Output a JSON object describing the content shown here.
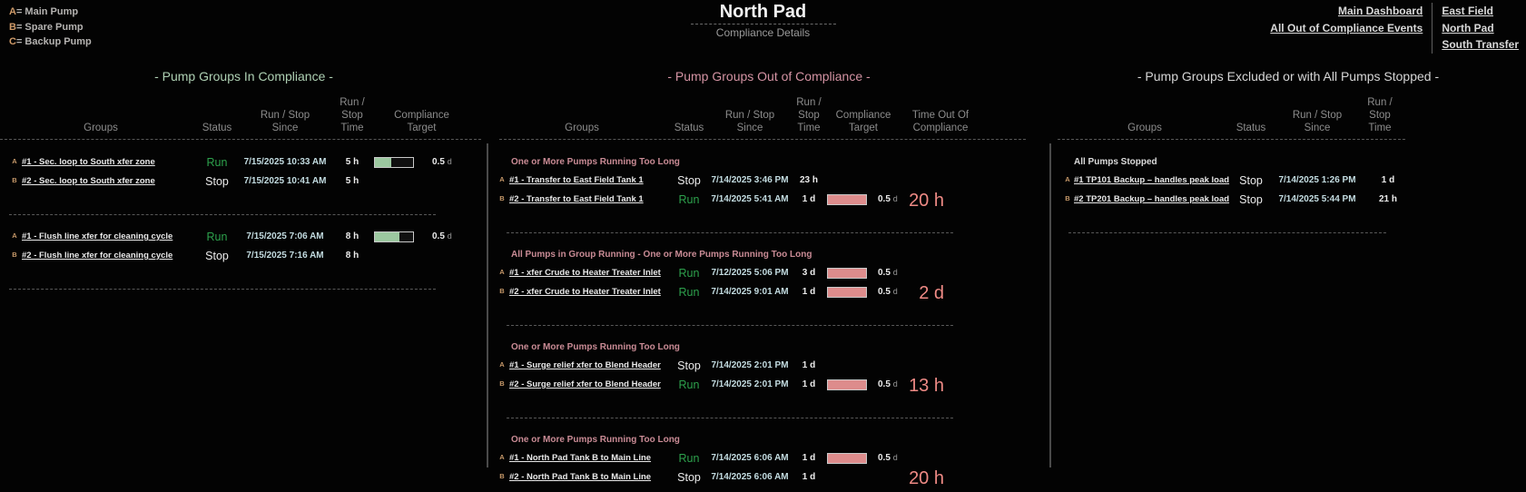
{
  "legend": {
    "items": [
      {
        "key": "A",
        "label": "= Main Pump"
      },
      {
        "key": "B",
        "label": "= Spare Pump"
      },
      {
        "key": "C",
        "label": "= Backup Pump"
      }
    ]
  },
  "header": {
    "title": "North Pad",
    "subtitle": "Compliance Details"
  },
  "nav": {
    "left": [
      {
        "label": "Main Dashboard"
      },
      {
        "label": "All Out of Compliance Events"
      }
    ],
    "right": [
      {
        "label": "East Field"
      },
      {
        "label": "North Pad"
      },
      {
        "label": "South Transfer"
      }
    ]
  },
  "colors": {
    "in_compliance_title": "#aed0b3",
    "out_of_compliance_title": "#d493a3",
    "excluded_title": "#d6d6d6",
    "run_green": "#2da14c",
    "stop_white": "#ececec",
    "bar_green": "#9cc8a0",
    "bar_pink": "#dd8c8c",
    "big_time_pink": "#ee8a85",
    "date_cyan": "#c3dce1",
    "marker_tan": "#c89a6a",
    "reason_pink": "#c98b95"
  },
  "panels": {
    "in_compliance": {
      "title": "- Pump Groups In Compliance -",
      "columns": [
        {
          "l1": "",
          "l2": "Groups"
        },
        {
          "l1": "",
          "l2": "Status"
        },
        {
          "l1": "Run / Stop",
          "l2": "Since"
        },
        {
          "l1": "Run / Stop",
          "l2": "Time"
        },
        {
          "l1": "Compliance",
          "l2": "Target"
        }
      ],
      "groups": [
        {
          "rows": [
            {
              "marker": "A",
              "name": "#1 - Sec. loop to South xfer zone",
              "status": "Run",
              "since": "7/15/2025 10:33 AM",
              "time": "5 h",
              "bar_pct": 42,
              "target_value": "0.5",
              "target_unit": "d"
            },
            {
              "marker": "B",
              "name": "#2 - Sec. loop to South xfer zone",
              "status": "Stop",
              "since": "7/15/2025 10:41 AM",
              "time": "5 h"
            }
          ]
        },
        {
          "rows": [
            {
              "marker": "A",
              "name": "#1 - Flush line xfer for cleaning cycle",
              "status": "Run",
              "since": "7/15/2025 7:06 AM",
              "time": "8 h",
              "bar_pct": 65,
              "target_value": "0.5",
              "target_unit": "d"
            },
            {
              "marker": "B",
              "name": "#2 - Flush line xfer for cleaning cycle",
              "status": "Stop",
              "since": "7/15/2025 7:16 AM",
              "time": "8 h"
            }
          ]
        }
      ]
    },
    "out_of_compliance": {
      "title": "- Pump Groups Out of Compliance -",
      "columns": [
        {
          "l1": "",
          "l2": "Groups"
        },
        {
          "l1": "",
          "l2": "Status"
        },
        {
          "l1": "Run / Stop",
          "l2": "Since"
        },
        {
          "l1": "Run / Stop",
          "l2": "Time"
        },
        {
          "l1": "Compliance",
          "l2": "Target"
        },
        {
          "l1": "Time Out Of",
          "l2": "Compliance"
        }
      ],
      "groups": [
        {
          "reason": "One or More Pumps Running Too Long",
          "time_out": "20 h",
          "rows": [
            {
              "marker": "A",
              "name": "#1 - Transfer to East Field Tank 1",
              "status": "Stop",
              "since": "7/14/2025 3:46 PM",
              "time": "23 h"
            },
            {
              "marker": "B",
              "name": "#2 - Transfer to East Field Tank 1",
              "status": "Run",
              "since": "7/14/2025 5:41 AM",
              "time": "1 d",
              "bar_pct": 100,
              "target_value": "0.5",
              "target_unit": "d"
            }
          ]
        },
        {
          "reason": "All Pumps in Group Running - One or More Pumps Running Too Long",
          "time_out": "2 d",
          "rows": [
            {
              "marker": "A",
              "name": "#1 - xfer Crude to Heater Treater Inlet",
              "status": "Run",
              "since": "7/12/2025 5:06 PM",
              "time": "3 d",
              "bar_pct": 100,
              "target_value": "0.5",
              "target_unit": "d"
            },
            {
              "marker": "B",
              "name": "#2 - xfer Crude to Heater Treater Inlet",
              "status": "Run",
              "since": "7/14/2025 9:01 AM",
              "time": "1 d",
              "bar_pct": 100,
              "target_value": "0.5",
              "target_unit": "d"
            }
          ]
        },
        {
          "reason": "One or More Pumps Running Too Long",
          "time_out": "13 h",
          "rows": [
            {
              "marker": "A",
              "name": "#1 - Surge relief xfer to Blend Header",
              "status": "Stop",
              "since": "7/14/2025 2:01 PM",
              "time": "1 d"
            },
            {
              "marker": "B",
              "name": "#2 - Surge relief xfer to Blend Header",
              "status": "Run",
              "since": "7/14/2025 2:01 PM",
              "time": "1 d",
              "bar_pct": 100,
              "target_value": "0.5",
              "target_unit": "d"
            }
          ]
        },
        {
          "reason": "One or More Pumps Running Too Long",
          "time_out": "20 h",
          "rows": [
            {
              "marker": "A",
              "name": "#1 - North Pad Tank B to Main Line",
              "status": "Run",
              "since": "7/14/2025 6:06 AM",
              "time": "1 d",
              "bar_pct": 100,
              "target_value": "0.5",
              "target_unit": "d"
            },
            {
              "marker": "B",
              "name": "#2 - North Pad Tank B to Main Line",
              "status": "Stop",
              "since": "7/14/2025 6:06 AM",
              "time": "1 d"
            }
          ]
        }
      ]
    },
    "excluded": {
      "title": "- Pump Groups Excluded or with All Pumps Stopped -",
      "columns": [
        {
          "l1": "",
          "l2": "Groups"
        },
        {
          "l1": "",
          "l2": "Status"
        },
        {
          "l1": "Run / Stop",
          "l2": "Since"
        },
        {
          "l1": "Run / Stop",
          "l2": "Time"
        }
      ],
      "groups": [
        {
          "reason": "All Pumps Stopped",
          "rows": [
            {
              "marker": "A",
              "name": "#1 TP101 Backup – handles peak load",
              "status": "Stop",
              "since": "7/14/2025 1:26 PM",
              "time": "1 d"
            },
            {
              "marker": "B",
              "name": "#2 TP201 Backup – handles peak load",
              "status": "Stop",
              "since": "7/14/2025 5:44 PM",
              "time": "21 h"
            }
          ]
        }
      ]
    }
  }
}
